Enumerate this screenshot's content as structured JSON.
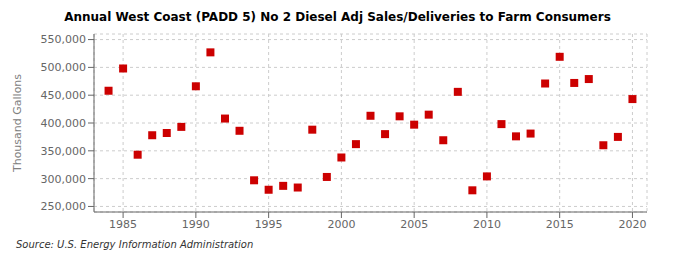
{
  "chart_data": {
    "type": "scatter",
    "title": "Annual West Coast (PADD 5) No 2 Diesel Adj Sales/Deliveries to Farm Consumers",
    "ylabel": "Thousand Gallons",
    "annotations": [
      "Source: U.S. Energy Information Administration"
    ],
    "x": [
      1984,
      1985,
      1986,
      1987,
      1988,
      1989,
      1990,
      1991,
      1992,
      1993,
      1994,
      1995,
      1996,
      1997,
      1998,
      1999,
      2000,
      2001,
      2002,
      2003,
      2004,
      2005,
      2006,
      2007,
      2008,
      2009,
      2010,
      2011,
      2012,
      2013,
      2014,
      2015,
      2016,
      2017,
      2018,
      2019,
      2020
    ],
    "values": [
      458000,
      498000,
      343000,
      378000,
      382000,
      393000,
      466000,
      527000,
      408000,
      386000,
      297000,
      280000,
      287000,
      284000,
      388000,
      303000,
      338000,
      362000,
      413000,
      380000,
      412000,
      397000,
      415000,
      369000,
      456000,
      279000,
      304000,
      398000,
      376000,
      381000,
      471000,
      519000,
      472000,
      479000,
      360000,
      375000,
      443000
    ],
    "color": "#cc0000",
    "marker": "square",
    "grid": true,
    "xlim": [
      1983,
      2021
    ],
    "xticks": [
      1985,
      1990,
      1995,
      2000,
      2005,
      2010,
      2015,
      2020
    ],
    "ylim": [
      240000,
      560000
    ],
    "yticks": [
      {
        "value": 250000,
        "label": "250,000"
      },
      {
        "value": 300000,
        "label": "300,000"
      },
      {
        "value": 350000,
        "label": "350,000"
      },
      {
        "value": 400000,
        "label": "400,000"
      },
      {
        "value": 450000,
        "label": "450,000"
      },
      {
        "value": 500000,
        "label": "500,000"
      },
      {
        "value": 550000,
        "label": "550,000"
      }
    ]
  }
}
